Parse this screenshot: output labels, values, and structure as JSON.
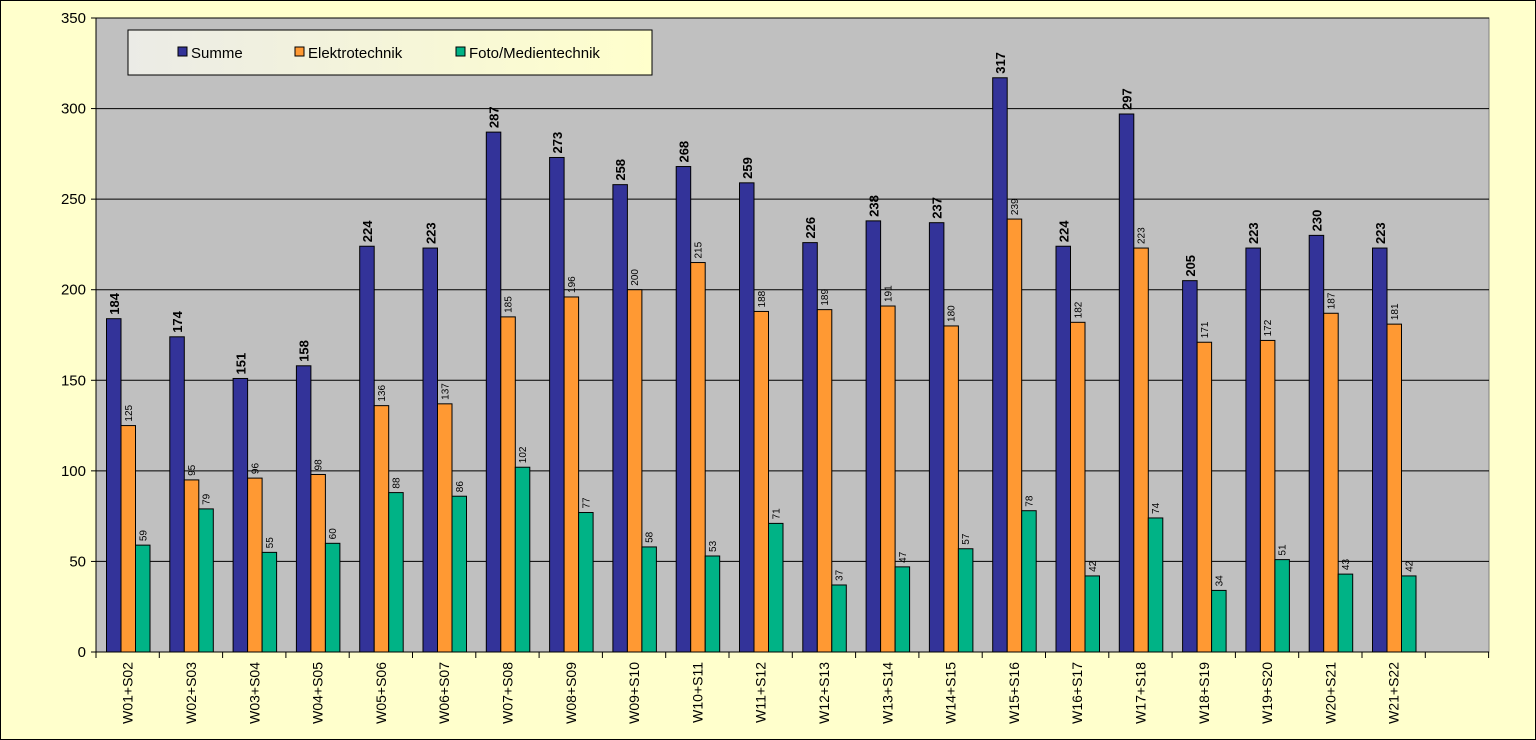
{
  "chart_data": {
    "type": "bar",
    "title": "",
    "xlabel": "",
    "ylabel": "",
    "ylim": [
      0,
      350
    ],
    "yticks": [
      0,
      50,
      100,
      150,
      200,
      250,
      300,
      350
    ],
    "grid": true,
    "legend_position": "top-left",
    "categories": [
      "W01+S02",
      "W02+S03",
      "W03+S04",
      "W04+S05",
      "W05+S06",
      "W06+S07",
      "W07+S08",
      "W08+S09",
      "W09+S10",
      "W10+S11",
      "W11+S12",
      "W12+S13",
      "W13+S14",
      "W14+S15",
      "W15+S16",
      "W16+S17",
      "W17+S18",
      "W18+S19",
      "W19+S20",
      "W20+S21",
      "W21+S22"
    ],
    "series": [
      {
        "name": "Summe",
        "color": "#333399",
        "label_style": "bold",
        "values": [
          184,
          174,
          151,
          158,
          224,
          223,
          287,
          273,
          258,
          268,
          259,
          226,
          238,
          237,
          317,
          224,
          297,
          205,
          223,
          230,
          223
        ]
      },
      {
        "name": "Elektrotechnik",
        "color": "#ff9933",
        "label_style": "small",
        "values": [
          125,
          95,
          96,
          98,
          136,
          137,
          185,
          196,
          200,
          215,
          188,
          189,
          191,
          180,
          239,
          182,
          223,
          171,
          172,
          187,
          181
        ]
      },
      {
        "name": "Foto/Medientechnik",
        "color": "#00b386",
        "label_style": "small",
        "values": [
          59,
          79,
          55,
          60,
          88,
          86,
          102,
          77,
          58,
          53,
          71,
          37,
          47,
          57,
          78,
          42,
          74,
          34,
          51,
          43,
          42
        ]
      }
    ]
  },
  "colors": {
    "page_background": "#ffffcc",
    "plot_background": "#c0c0c0",
    "gridline": "#000000"
  }
}
